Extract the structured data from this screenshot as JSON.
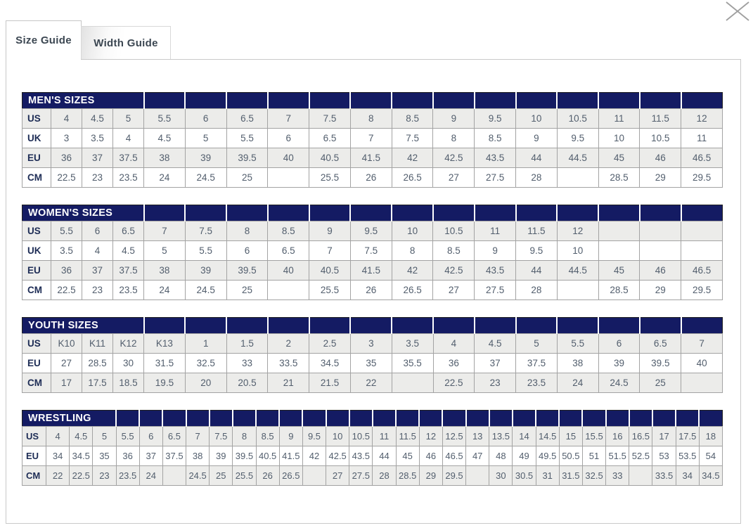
{
  "tabs": [
    {
      "label": "Size Guide",
      "active": true
    },
    {
      "label": "Width Guide",
      "active": false
    }
  ],
  "close": {
    "icon": "close-x"
  },
  "colors": {
    "header_navy": "#141b63",
    "row_alt_gray": "#ececea",
    "label_text": "#1d2c55",
    "value_text": "#525e6d",
    "tab_text": "#3c4752",
    "close_icon_gray": "#9f9f9f"
  },
  "tables": [
    {
      "title": "MEN'S SIZES",
      "title_colspan": 4,
      "rows": [
        {
          "label": "US",
          "values": [
            "4",
            "4.5",
            "5",
            "5.5",
            "6",
            "6.5",
            "7",
            "7.5",
            "8",
            "8.5",
            "9",
            "9.5",
            "10",
            "10.5",
            "11",
            "11.5",
            "12"
          ]
        },
        {
          "label": "UK",
          "values": [
            "3",
            "3.5",
            "4",
            "4.5",
            "5",
            "5.5",
            "6",
            "6.5",
            "7",
            "7.5",
            "8",
            "8.5",
            "9",
            "9.5",
            "10",
            "10.5",
            "11"
          ]
        },
        {
          "label": "EU",
          "values": [
            "36",
            "37",
            "37.5",
            "38",
            "39",
            "39.5",
            "40",
            "40.5",
            "41.5",
            "42",
            "42.5",
            "43.5",
            "44",
            "44.5",
            "45",
            "46",
            "46.5"
          ]
        },
        {
          "label": "CM",
          "values": [
            "22.5",
            "23",
            "23.5",
            "24",
            "24.5",
            "25",
            "",
            "25.5",
            "26",
            "26.5",
            "27",
            "27.5",
            "28",
            "",
            "28.5",
            "29",
            "29.5"
          ]
        }
      ]
    },
    {
      "title": "WOMEN'S SIZES",
      "title_colspan": 4,
      "rows": [
        {
          "label": "US",
          "values": [
            "5.5",
            "6",
            "6.5",
            "7",
            "7.5",
            "8",
            "8.5",
            "9",
            "9.5",
            "10",
            "10.5",
            "11",
            "11.5",
            "12",
            "",
            "",
            ""
          ]
        },
        {
          "label": "UK",
          "values": [
            "3.5",
            "4",
            "4.5",
            "5",
            "5.5",
            "6",
            "6.5",
            "7",
            "7.5",
            "8",
            "8.5",
            "9",
            "9.5",
            "10",
            "",
            "",
            ""
          ]
        },
        {
          "label": "EU",
          "values": [
            "36",
            "37",
            "37.5",
            "38",
            "39",
            "39.5",
            "40",
            "40.5",
            "41.5",
            "42",
            "42.5",
            "43.5",
            "44",
            "44.5",
            "45",
            "46",
            "46.5"
          ]
        },
        {
          "label": "CM",
          "values": [
            "22.5",
            "23",
            "23.5",
            "24",
            "24.5",
            "25",
            "",
            "25.5",
            "26",
            "26.5",
            "27",
            "27.5",
            "28",
            "",
            "28.5",
            "29",
            "29.5"
          ]
        }
      ]
    },
    {
      "title": "YOUTH SIZES",
      "title_colspan": 4,
      "rows": [
        {
          "label": "US",
          "values": [
            "K10",
            "K11",
            "K12",
            "K13",
            "1",
            "1.5",
            "2",
            "2.5",
            "3",
            "3.5",
            "4",
            "4.5",
            "5",
            "5.5",
            "6",
            "6.5",
            "7"
          ]
        },
        {
          "label": "EU",
          "values": [
            "27",
            "28.5",
            "30",
            "31.5",
            "32.5",
            "33",
            "33.5",
            "34.5",
            "35",
            "35.5",
            "36",
            "37",
            "37.5",
            "38",
            "39",
            "39.5",
            "40"
          ]
        },
        {
          "label": "CM",
          "values": [
            "17",
            "17.5",
            "18.5",
            "19.5",
            "20",
            "20.5",
            "21",
            "21.5",
            "22",
            "",
            "22.5",
            "23",
            "23.5",
            "24",
            "24.5",
            "25",
            ""
          ]
        }
      ]
    },
    {
      "title": "WRESTLING",
      "title_colspan": 4,
      "rows": [
        {
          "label": "US",
          "values": [
            "4",
            "4.5",
            "5",
            "5.5",
            "6",
            "6.5",
            "7",
            "7.5",
            "8",
            "8.5",
            "9",
            "9.5",
            "10",
            "10.5",
            "11",
            "11.5",
            "12",
            "12.5",
            "13",
            "13.5",
            "14",
            "14.5",
            "15",
            "15.5",
            "16",
            "16.5",
            "17",
            "17.5",
            "18"
          ]
        },
        {
          "label": "EU",
          "values": [
            "34",
            "34.5",
            "35",
            "36",
            "37",
            "37.5",
            "38",
            "39",
            "39.5",
            "40.5",
            "41.5",
            "42",
            "42.5",
            "43.5",
            "44",
            "45",
            "46",
            "46.5",
            "47",
            "48",
            "49",
            "49.5",
            "50.5",
            "51",
            "51.5",
            "52.5",
            "53",
            "53.5",
            "54"
          ]
        },
        {
          "label": "CM",
          "values": [
            "22",
            "22.5",
            "23",
            "23.5",
            "24",
            "",
            "24.5",
            "25",
            "25.5",
            "26",
            "26.5",
            "",
            "27",
            "27.5",
            "28",
            "28.5",
            "29",
            "29.5",
            "",
            "30",
            "30.5",
            "31",
            "31.5",
            "32.5",
            "33",
            "",
            "33.5",
            "34",
            "34.5"
          ]
        }
      ]
    }
  ]
}
